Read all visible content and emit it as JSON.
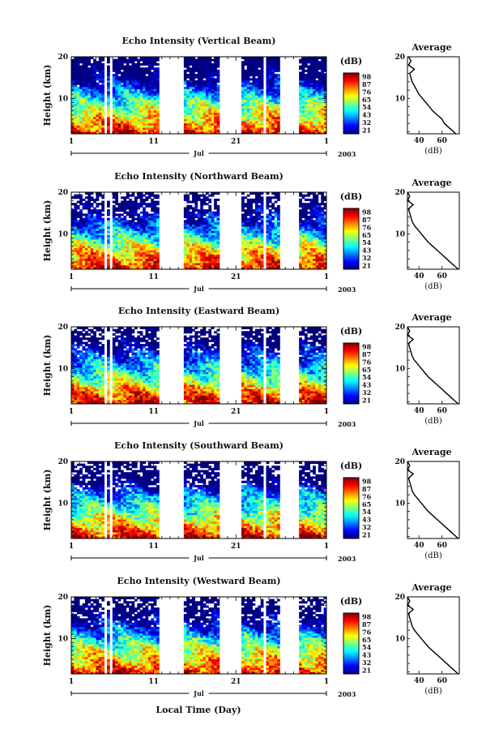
{
  "figure": {
    "xlabel": "Local Time (Day)"
  },
  "colorbar": {
    "unit": "(dB)",
    "ticks": [
      "98",
      "87",
      "76",
      "65",
      "54",
      "43",
      "32",
      "21"
    ],
    "colors": [
      "#ef3b2c",
      "#fd8d3c",
      "#fed976",
      "#ffff66",
      "#a1e37a",
      "#41d9c0",
      "#3aa8e8",
      "#3b5fd9",
      "#2b2ba8"
    ]
  },
  "avg_panel": {
    "title": "Average",
    "unit": "(dB)",
    "xticks": [
      40,
      60
    ],
    "yticks": [
      10,
      20
    ]
  },
  "chart_data": [
    {
      "type": "heatmap",
      "title": "Echo Intensity (Vertical Beam)",
      "ylabel": "Height (km)",
      "xticks": [
        "1",
        "11",
        "21",
        "1"
      ],
      "yticks": [
        "10",
        "20"
      ],
      "month": "Jul",
      "year": "2003",
      "xlim": [
        1,
        32
      ],
      "ylim": [
        1.5,
        20
      ],
      "clim": [
        21,
        98
      ],
      "data_gaps_days": [
        [
          5.0,
          5.3
        ],
        [
          5.8,
          6.1
        ],
        [
          11.8,
          14.6
        ],
        [
          19.0,
          21.8
        ],
        [
          24.3,
          24.8
        ],
        [
          26.5,
          28.5
        ]
      ],
      "colorscale": "jet",
      "average_profile": {
        "height_km": [
          1.5,
          2,
          3,
          4,
          5,
          6,
          7,
          8,
          9,
          10,
          11,
          12,
          13,
          14,
          15,
          16,
          17,
          18,
          19,
          20
        ],
        "intensity_db": [
          72,
          70,
          66,
          62,
          60,
          56,
          52,
          49,
          46,
          43,
          40,
          38,
          36,
          34,
          33,
          32,
          36,
          31,
          33,
          31
        ]
      }
    },
    {
      "type": "heatmap",
      "title": "Echo Intensity (Northward Beam)",
      "ylabel": "Height (km)",
      "xticks": [
        "1",
        "11",
        "21",
        "1"
      ],
      "yticks": [
        "10",
        "20"
      ],
      "month": "Jul",
      "year": "2003",
      "xlim": [
        1,
        32
      ],
      "ylim": [
        1.5,
        20
      ],
      "clim": [
        21,
        98
      ],
      "data_gaps_days": [
        [
          5.0,
          5.3
        ],
        [
          5.8,
          6.1
        ],
        [
          11.8,
          14.6
        ],
        [
          19.0,
          21.8
        ],
        [
          24.3,
          24.8
        ],
        [
          26.5,
          28.5
        ]
      ],
      "colorscale": "jet",
      "average_profile": {
        "height_km": [
          1.5,
          2,
          3,
          4,
          5,
          6,
          7,
          8,
          9,
          10,
          11,
          12,
          13,
          14,
          15,
          16,
          17,
          18,
          19,
          20
        ],
        "intensity_db": [
          74,
          72,
          68,
          64,
          60,
          56,
          52,
          48,
          45,
          42,
          39,
          36,
          34,
          33,
          32,
          31,
          35,
          30,
          32,
          30
        ]
      }
    },
    {
      "type": "heatmap",
      "title": "Echo Intensity (Eastward Beam)",
      "ylabel": "Height (km)",
      "xticks": [
        "1",
        "11",
        "21",
        "1"
      ],
      "yticks": [
        "10",
        "20"
      ],
      "month": "Jul",
      "year": "2003",
      "xlim": [
        1,
        32
      ],
      "ylim": [
        1.5,
        20
      ],
      "clim": [
        21,
        98
      ],
      "data_gaps_days": [
        [
          5.0,
          5.3
        ],
        [
          5.8,
          6.1
        ],
        [
          11.8,
          14.6
        ],
        [
          19.0,
          21.8
        ],
        [
          24.3,
          24.8
        ],
        [
          26.5,
          28.5
        ]
      ],
      "colorscale": "jet",
      "average_profile": {
        "height_km": [
          1.5,
          2,
          3,
          4,
          5,
          6,
          7,
          8,
          9,
          10,
          11,
          12,
          13,
          14,
          15,
          16,
          17,
          18,
          19,
          20
        ],
        "intensity_db": [
          74,
          72,
          68,
          64,
          60,
          56,
          52,
          48,
          45,
          42,
          39,
          36,
          34,
          33,
          32,
          31,
          35,
          30,
          32,
          30
        ]
      }
    },
    {
      "type": "heatmap",
      "title": "Echo Intensity (Southward Beam)",
      "ylabel": "Height (km)",
      "xticks": [
        "1",
        "11",
        "21",
        "1"
      ],
      "yticks": [
        "10",
        "20"
      ],
      "month": "Jul",
      "year": "2003",
      "xlim": [
        1,
        32
      ],
      "ylim": [
        1.5,
        20
      ],
      "clim": [
        21,
        98
      ],
      "data_gaps_days": [
        [
          5.0,
          5.3
        ],
        [
          5.8,
          6.1
        ],
        [
          11.8,
          14.6
        ],
        [
          19.0,
          21.8
        ],
        [
          24.3,
          24.8
        ],
        [
          26.5,
          28.5
        ]
      ],
      "colorscale": "jet",
      "average_profile": {
        "height_km": [
          1.5,
          2,
          3,
          4,
          5,
          6,
          7,
          8,
          9,
          10,
          11,
          12,
          13,
          14,
          15,
          16,
          17,
          18,
          19,
          20
        ],
        "intensity_db": [
          74,
          72,
          68,
          64,
          60,
          56,
          52,
          48,
          45,
          42,
          39,
          36,
          34,
          33,
          32,
          31,
          35,
          30,
          32,
          30
        ]
      }
    },
    {
      "type": "heatmap",
      "title": "Echo Intensity (Westward Beam)",
      "ylabel": "Height (km)",
      "xticks": [
        "1",
        "11",
        "21",
        "1"
      ],
      "yticks": [
        "10",
        "20"
      ],
      "month": "Jul",
      "year": "2003",
      "xlim": [
        1,
        32
      ],
      "ylim": [
        1.5,
        20
      ],
      "clim": [
        21,
        98
      ],
      "data_gaps_days": [
        [
          5.0,
          5.3
        ],
        [
          5.8,
          6.1
        ],
        [
          11.8,
          14.6
        ],
        [
          19.0,
          21.8
        ],
        [
          24.3,
          24.8
        ],
        [
          26.5,
          28.5
        ]
      ],
      "colorscale": "jet",
      "average_profile": {
        "height_km": [
          1.5,
          2,
          3,
          4,
          5,
          6,
          7,
          8,
          9,
          10,
          11,
          12,
          13,
          14,
          15,
          16,
          17,
          18,
          19,
          20
        ],
        "intensity_db": [
          74,
          72,
          68,
          64,
          60,
          56,
          52,
          48,
          45,
          42,
          39,
          36,
          34,
          33,
          32,
          31,
          35,
          30,
          32,
          30
        ]
      }
    }
  ]
}
